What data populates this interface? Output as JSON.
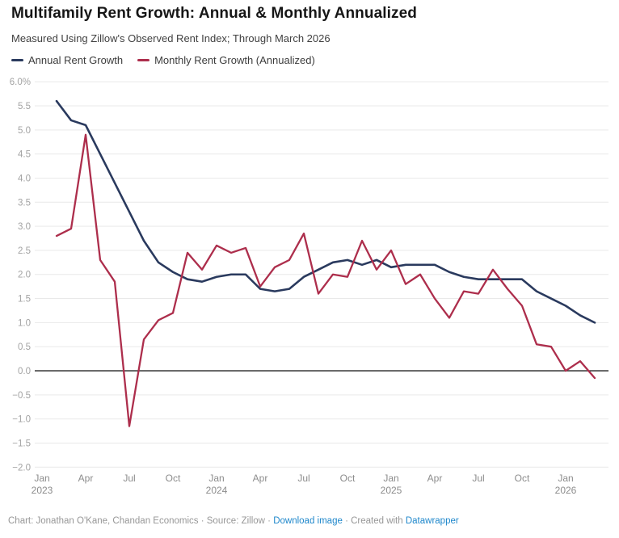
{
  "header": {
    "title": "Multifamily Rent Growth: Annual & Monthly Annualized",
    "subtitle": "Measured Using Zillow's Observed Rent Index; Through March 2026"
  },
  "colors": {
    "annual": "#2a3a5e",
    "monthly": "#ad2e4c",
    "grid": "#e9e9e9",
    "zero_line": "#111111",
    "y_tick_text": "#a3a3a3",
    "x_tick_text": "#8c8c8c",
    "link": "#1e87cb",
    "footer_text": "#979797"
  },
  "chart_data": {
    "type": "line",
    "x": [
      "2023-02",
      "2023-03",
      "2023-04",
      "2023-05",
      "2023-06",
      "2023-07",
      "2023-08",
      "2023-09",
      "2023-10",
      "2023-11",
      "2023-12",
      "2024-01",
      "2024-02",
      "2024-03",
      "2024-04",
      "2024-05",
      "2024-06",
      "2024-07",
      "2024-08",
      "2024-09",
      "2024-10",
      "2024-11",
      "2024-12",
      "2025-01",
      "2025-02",
      "2025-03",
      "2025-04",
      "2025-05",
      "2025-06",
      "2025-07",
      "2025-08",
      "2025-09",
      "2025-10",
      "2025-11",
      "2025-12",
      "2026-01",
      "2026-02",
      "2026-03"
    ],
    "series": [
      {
        "name": "Annual Rent Growth",
        "color": "#2a3a5e",
        "values": [
          5.6,
          5.2,
          5.1,
          4.5,
          3.9,
          3.3,
          2.7,
          2.25,
          2.05,
          1.9,
          1.85,
          1.95,
          2.0,
          2.0,
          1.7,
          1.65,
          1.7,
          1.95,
          2.1,
          2.25,
          2.3,
          2.2,
          2.3,
          2.15,
          2.2,
          2.2,
          2.2,
          2.05,
          1.95,
          1.9,
          1.9,
          1.9,
          1.9,
          1.65,
          1.5,
          1.35,
          1.15,
          1.0
        ]
      },
      {
        "name": "Monthly Rent Growth (Annualized)",
        "color": "#ad2e4c",
        "values": [
          2.8,
          2.95,
          4.9,
          2.3,
          1.85,
          -1.15,
          0.65,
          1.05,
          1.2,
          2.45,
          2.1,
          2.6,
          2.45,
          2.55,
          1.75,
          2.15,
          2.3,
          2.85,
          1.6,
          2.0,
          1.95,
          2.7,
          2.1,
          2.5,
          1.8,
          2.0,
          1.5,
          1.1,
          1.65,
          1.6,
          2.1,
          1.7,
          1.35,
          0.55,
          0.5,
          0.0,
          0.2,
          -0.15
        ]
      }
    ],
    "ylim": [
      -2.0,
      6.0
    ],
    "ytick_labels": [
      "6.0%",
      "5.5",
      "5.0",
      "4.5",
      "4.0",
      "3.5",
      "3.0",
      "2.5",
      "2.0",
      "1.5",
      "1.0",
      "0.5",
      "0.0",
      "−0.5",
      "−1.0",
      "−1.5",
      "−2.0"
    ],
    "ytick_values": [
      6.0,
      5.5,
      5.0,
      4.5,
      4.0,
      3.5,
      3.0,
      2.5,
      2.0,
      1.5,
      1.0,
      0.5,
      0.0,
      -0.5,
      -1.0,
      -1.5,
      -2.0
    ],
    "xticks": [
      {
        "m": 0,
        "line1": "Jan",
        "line2": "2023"
      },
      {
        "m": 3,
        "line1": "Apr"
      },
      {
        "m": 6,
        "line1": "Jul"
      },
      {
        "m": 9,
        "line1": "Oct"
      },
      {
        "m": 12,
        "line1": "Jan",
        "line2": "2024"
      },
      {
        "m": 15,
        "line1": "Apr"
      },
      {
        "m": 18,
        "line1": "Jul"
      },
      {
        "m": 21,
        "line1": "Oct"
      },
      {
        "m": 24,
        "line1": "Jan",
        "line2": "2025"
      },
      {
        "m": 27,
        "line1": "Apr"
      },
      {
        "m": 30,
        "line1": "Jul"
      },
      {
        "m": 33,
        "line1": "Oct"
      },
      {
        "m": 36,
        "line1": "Jan",
        "line2": "2026"
      }
    ],
    "grid": "horizontal",
    "zero_line": true,
    "legend_position": "top-left",
    "legend": [
      "Annual Rent Growth",
      "Monthly Rent Growth (Annualized)"
    ]
  },
  "footer": {
    "parts": [
      {
        "text": "Chart: Jonathan O'Kane, Chandan Economics · Source: Zillow · ",
        "link": false
      },
      {
        "text": "Download image",
        "link": true
      },
      {
        "text": " · Created with ",
        "link": false
      },
      {
        "text": "Datawrapper",
        "link": true
      }
    ]
  }
}
